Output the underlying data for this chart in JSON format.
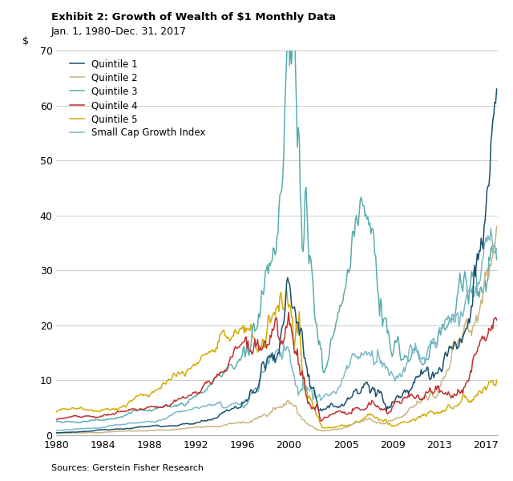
{
  "title": "Exhibit 2: Growth of Wealth of $1 Monthly Data",
  "subtitle": "Jan. 1, 1980–Dec. 31, 2017",
  "ylabel": "$",
  "source": "Sources: Gerstein Fisher Research",
  "xlim": [
    1980,
    2018
  ],
  "ylim": [
    0,
    70
  ],
  "yticks": [
    0,
    10,
    20,
    30,
    40,
    50,
    60,
    70
  ],
  "xticks": [
    1980,
    1984,
    1988,
    1992,
    1996,
    2000,
    2005,
    2009,
    2013,
    2017
  ],
  "colors": {
    "quintile1": "#1b4f6a",
    "quintile2": "#c8b482",
    "quintile3": "#5aacac",
    "quintile4": "#c03030",
    "quintile5": "#d4aa00",
    "index": "#7ab8c8"
  },
  "legend": [
    "Quintile 1",
    "Quintile 2",
    "Quintile 3",
    "Quintile 4",
    "Quintile 5",
    "Small Cap Growth Index"
  ],
  "grid_color": "#cccccc",
  "lw": 1.1
}
